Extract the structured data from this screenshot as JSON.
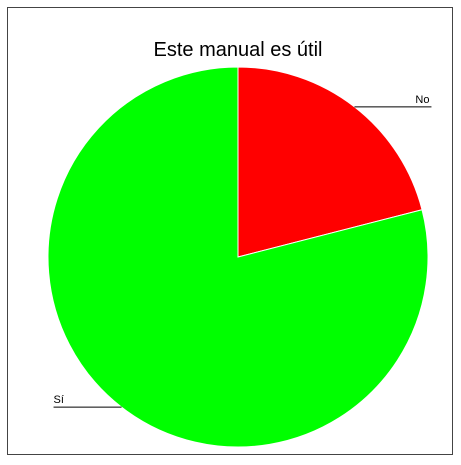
{
  "chart_data": {
    "type": "pie",
    "title": "Este manual es útil",
    "categories": [
      "No",
      "Sí"
    ],
    "values": [
      21,
      79
    ],
    "colors": [
      "#ff0000",
      "#00ff00"
    ]
  }
}
